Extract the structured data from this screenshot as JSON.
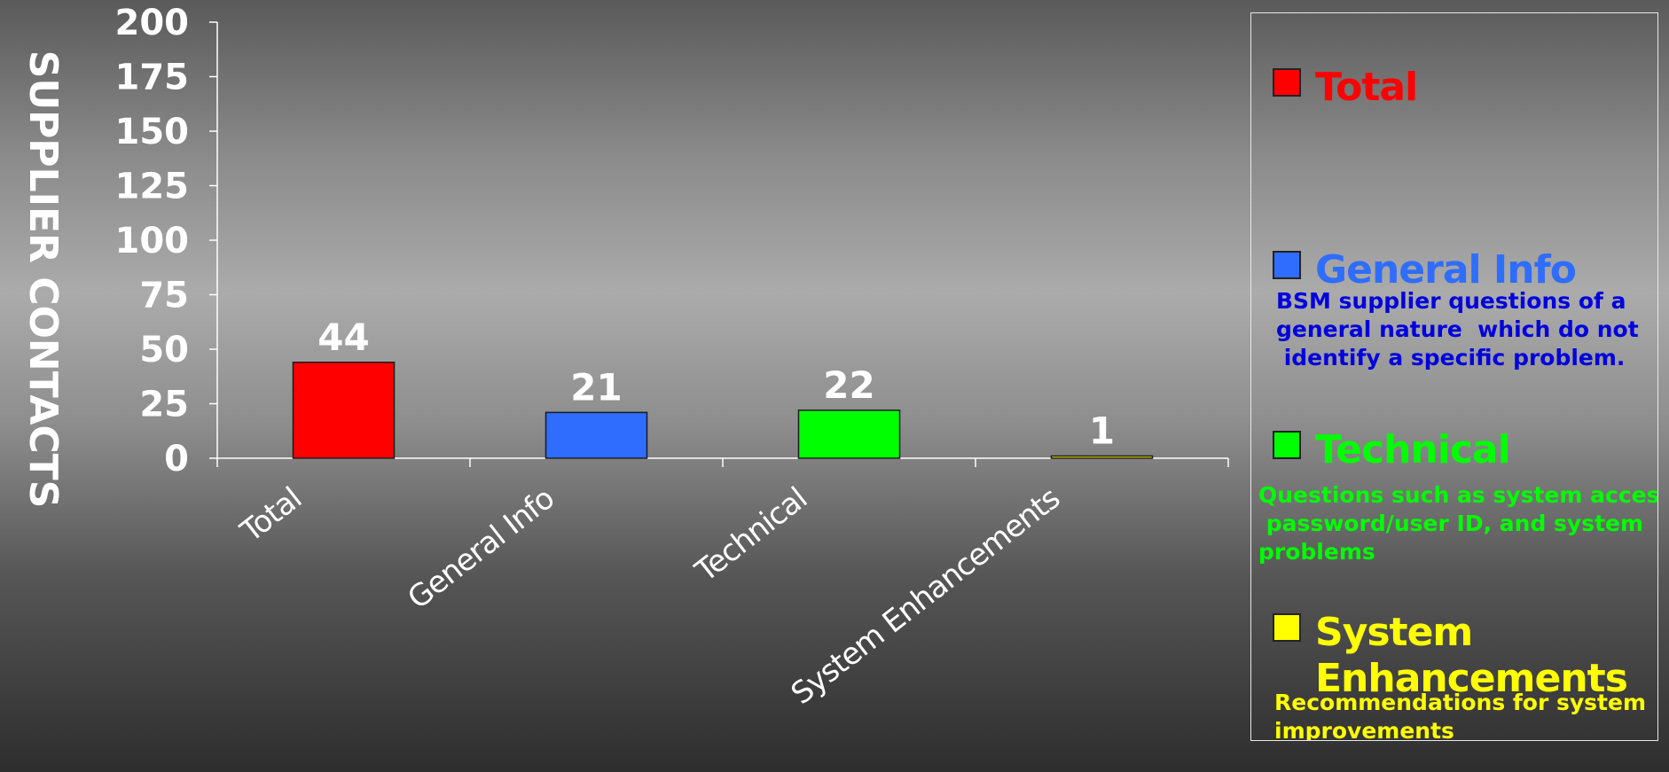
{
  "chart_data": {
    "type": "bar",
    "ylabel": "SUPPLIER CONTACTS",
    "ylim": [
      0,
      200
    ],
    "yticks": [
      0,
      25,
      50,
      75,
      100,
      125,
      150,
      175,
      200
    ],
    "categories": [
      "Total",
      "General Info",
      "Technical",
      "System Enhancements"
    ],
    "values": [
      44,
      21,
      22,
      1
    ],
    "colors": [
      "#ff0000",
      "#2f6dff",
      "#00ff00",
      "#ffff00"
    ],
    "data_labels": [
      "44",
      "21",
      "22",
      "1"
    ],
    "grid": false,
    "legend_placement": "right"
  },
  "legend": {
    "items": [
      {
        "name": "Total",
        "color": "#ff0000",
        "description": ""
      },
      {
        "name": "General Info",
        "color": "#2f6dff",
        "description": "BSM supplier questions of a\ngeneral nature  which do not\n identify a specific problem.",
        "description_color": "#0000dd"
      },
      {
        "name": "Technical",
        "color": "#00ff00",
        "description": "Questions such as system access,\n password/user ID, and system\nproblems",
        "description_color": "#00ff00"
      },
      {
        "name": "System Enhancements",
        "name_line1": "System",
        "name_line2": "Enhancements",
        "color": "#ffff00",
        "description": "Recommendations for system\nimprovements",
        "description_color": "#ffff00"
      }
    ]
  }
}
